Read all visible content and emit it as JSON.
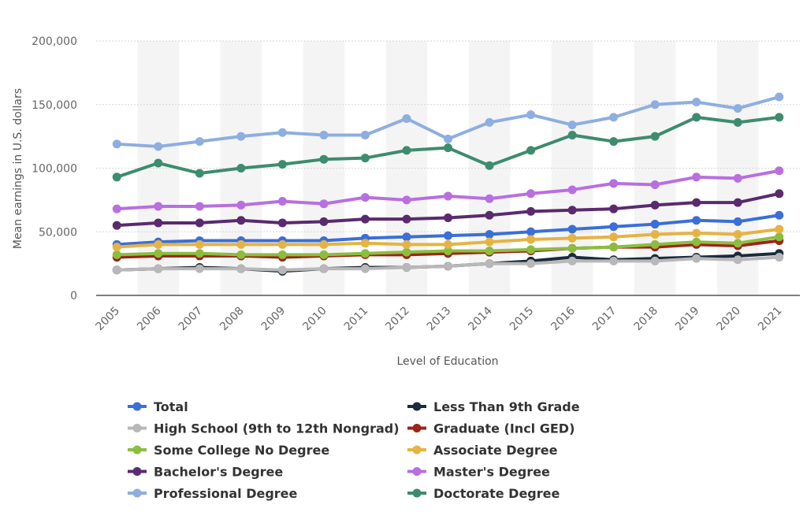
{
  "chart_data": {
    "type": "line",
    "title": "",
    "xlabel": "Level of Education",
    "ylabel": "Mean earnings in U.S. dollars",
    "ylim": [
      0,
      200000
    ],
    "yticks": [
      0,
      50000,
      100000,
      150000,
      200000
    ],
    "ytick_labels": [
      "0",
      "50,000",
      "100,000",
      "150,000",
      "200,000"
    ],
    "categories": [
      "2005",
      "2006",
      "2007",
      "2008",
      "2009",
      "2010",
      "2011",
      "2012",
      "2013",
      "2014",
      "2015",
      "2016",
      "2017",
      "2018",
      "2019",
      "2020",
      "2021"
    ],
    "grid": true,
    "legend_position": "bottom",
    "series": [
      {
        "name": "Total",
        "color": "#3a6fd8",
        "values": [
          40000,
          42000,
          43000,
          43000,
          43000,
          43000,
          45000,
          46000,
          47000,
          48000,
          50000,
          52000,
          54000,
          56000,
          59000,
          58000,
          63000
        ]
      },
      {
        "name": "Less Than 9th Grade",
        "color": "#1b2a3d",
        "values": [
          20000,
          21000,
          22000,
          21000,
          19000,
          21000,
          22000,
          22000,
          23000,
          25000,
          27000,
          30000,
          28000,
          29000,
          30000,
          31000,
          33000
        ]
      },
      {
        "name": "High School (9th to 12th Nongrad)",
        "color": "#b8b8b8",
        "values": [
          20000,
          21000,
          21000,
          21000,
          20000,
          21000,
          21000,
          22000,
          23000,
          25000,
          25000,
          27000,
          27000,
          27000,
          29000,
          28000,
          30000
        ]
      },
      {
        "name": "Graduate (Incl GED)",
        "color": "#9c2418",
        "values": [
          30000,
          31000,
          31000,
          31000,
          30000,
          31000,
          32000,
          32000,
          33000,
          34000,
          35000,
          37000,
          38000,
          38000,
          40000,
          39000,
          43000
        ]
      },
      {
        "name": "Some College No Degree",
        "color": "#8cbd3f",
        "values": [
          32000,
          33000,
          33000,
          32000,
          32000,
          32000,
          33000,
          34000,
          35000,
          35000,
          36000,
          37000,
          38000,
          40000,
          42000,
          41000,
          46000
        ]
      },
      {
        "name": "Associate Degree",
        "color": "#e5b344",
        "values": [
          38000,
          40000,
          40000,
          40000,
          40000,
          40000,
          41000,
          40000,
          40000,
          42000,
          44000,
          45000,
          46000,
          48000,
          49000,
          48000,
          52000
        ]
      },
      {
        "name": "Bachelor's Degree",
        "color": "#5a2a6e",
        "values": [
          55000,
          57000,
          57000,
          59000,
          57000,
          58000,
          60000,
          60000,
          61000,
          63000,
          66000,
          67000,
          68000,
          71000,
          73000,
          73000,
          80000
        ]
      },
      {
        "name": "Master's Degree",
        "color": "#b86fe0",
        "values": [
          68000,
          70000,
          70000,
          71000,
          74000,
          72000,
          77000,
          75000,
          78000,
          76000,
          80000,
          83000,
          88000,
          87000,
          93000,
          92000,
          98000
        ]
      },
      {
        "name": "Professional Degree",
        "color": "#8eaee0",
        "values": [
          119000,
          117000,
          121000,
          125000,
          128000,
          126000,
          126000,
          139000,
          123000,
          136000,
          142000,
          134000,
          140000,
          150000,
          152000,
          147000,
          156000
        ]
      },
      {
        "name": "Doctorate Degree",
        "color": "#3d8c6e",
        "values": [
          93000,
          104000,
          96000,
          100000,
          103000,
          107000,
          108000,
          114000,
          116000,
          102000,
          114000,
          126000,
          121000,
          125000,
          140000,
          136000,
          140000
        ]
      }
    ]
  }
}
